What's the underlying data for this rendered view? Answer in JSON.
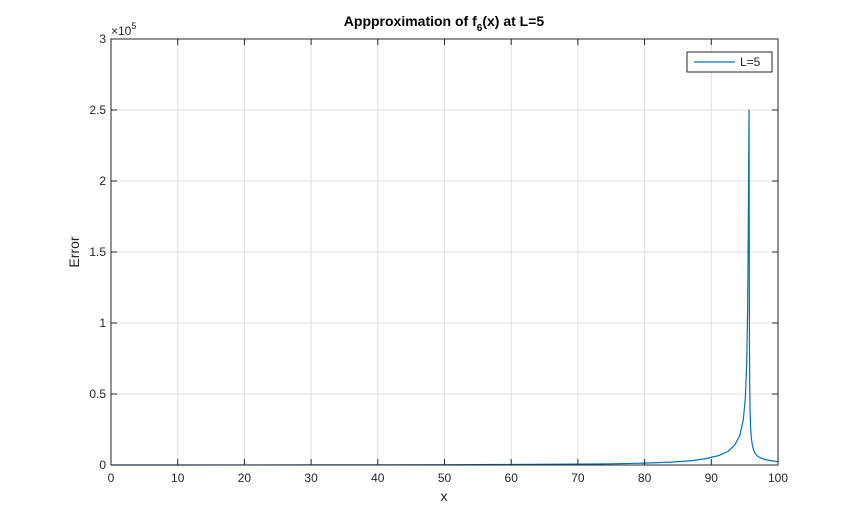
{
  "chart_data": {
    "type": "line",
    "title": "Appproximation of f",
    "title_subscript": "6",
    "title_suffix": "(x) at L=5",
    "xlabel": "x",
    "ylabel": "Error",
    "y_exponent_base": "×10",
    "y_exponent_power": "5",
    "xlim": [
      0,
      100
    ],
    "ylim": [
      0,
      300000
    ],
    "xticks": [
      0,
      10,
      20,
      30,
      40,
      50,
      60,
      70,
      80,
      90,
      100
    ],
    "xtick_labels": [
      "0",
      "10",
      "20",
      "30",
      "40",
      "50",
      "60",
      "70",
      "80",
      "90",
      "100"
    ],
    "yticks": [
      0,
      50000,
      100000,
      150000,
      200000,
      250000,
      300000
    ],
    "ytick_labels": [
      "0",
      "0.5",
      "1",
      "1.5",
      "2",
      "2.5",
      "3"
    ],
    "grid": true,
    "legend_position": "top-right",
    "series": [
      {
        "name": "L=5",
        "color": "#0072bd",
        "x": [
          0,
          10,
          20,
          30,
          40,
          50,
          60,
          70,
          75,
          80,
          84,
          87,
          89,
          91,
          92.5,
          93.5,
          94.3,
          94.8,
          95.1,
          95.3,
          95.45,
          95.55,
          95.62,
          95.66,
          95.68,
          95.7,
          95.72,
          95.76,
          95.82,
          95.9,
          96.0,
          96.15,
          96.35,
          96.6,
          97.0,
          97.5,
          98.2,
          99.0,
          100
        ],
        "y": [
          0,
          10,
          30,
          60,
          120,
          200,
          350,
          600,
          850,
          1300,
          2000,
          3000,
          4300,
          6500,
          9500,
          14000,
          21000,
          32000,
          47000,
          70000,
          110000,
          170000,
          225000,
          250000,
          190000,
          130000,
          85000,
          55000,
          37000,
          26000,
          19000,
          14000,
          10500,
          8000,
          6000,
          4700,
          3700,
          3000,
          2400
        ]
      }
    ]
  }
}
